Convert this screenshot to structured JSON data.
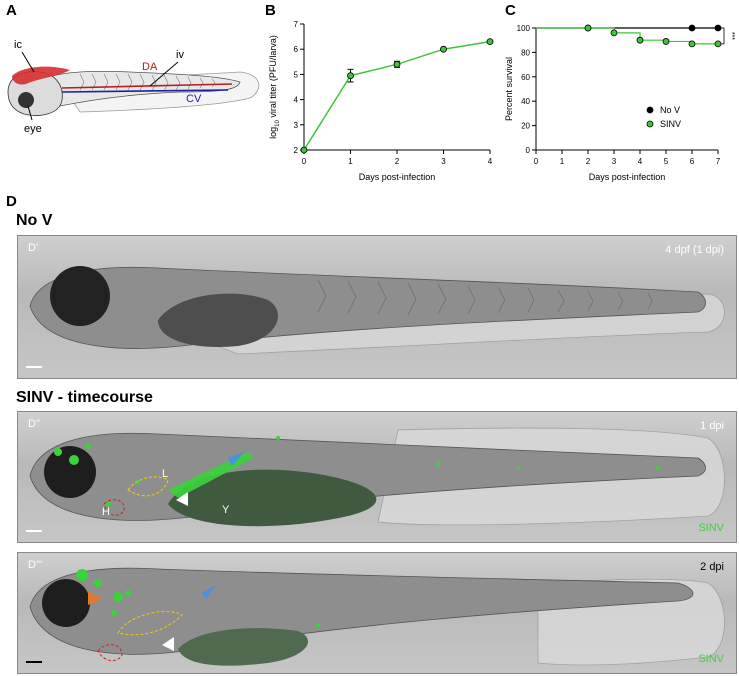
{
  "panels": {
    "A": {
      "letter": "A",
      "labels": {
        "ic": "ic",
        "iv": "iv",
        "da": "DA",
        "cv": "CV",
        "eye": "eye"
      }
    },
    "B": {
      "letter": "B"
    },
    "C": {
      "letter": "C"
    },
    "D": {
      "letter": "D"
    }
  },
  "chart_data": [
    {
      "type": "line",
      "panel": "B",
      "xlabel": "Days post-infection",
      "ylabel_prefix": "log",
      "ylabel_sub": "10",
      "ylabel_suffix": " viral titer (PFU/larva)",
      "xlim": [
        0,
        4
      ],
      "ylim": [
        2,
        7
      ],
      "xticks": [
        0,
        1,
        2,
        3,
        4
      ],
      "yticks": [
        2,
        3,
        4,
        5,
        6,
        7
      ],
      "series": [
        {
          "color": "#3fc43a",
          "x": [
            0,
            1,
            2,
            3,
            4
          ],
          "y": [
            2.0,
            4.95,
            5.4,
            6.0,
            6.3
          ],
          "err": [
            0,
            0.25,
            0.12,
            0.05,
            0.05
          ]
        }
      ]
    },
    {
      "type": "line",
      "panel": "C",
      "xlabel": "Days post-infection",
      "ylabel": "Percent survival",
      "xlim": [
        0,
        7
      ],
      "ylim": [
        0,
        100
      ],
      "xticks": [
        0,
        1,
        2,
        3,
        4,
        5,
        6,
        7
      ],
      "yticks": [
        0,
        20,
        40,
        60,
        80,
        100
      ],
      "significance": "***",
      "legend_position": "middle-right",
      "series": [
        {
          "name": "No V",
          "color": "#000000",
          "x": [
            0,
            2,
            6,
            7
          ],
          "y": [
            100,
            100,
            100,
            100
          ]
        },
        {
          "name": "SINV",
          "color": "#3fc43a",
          "x": [
            0,
            2,
            3,
            4,
            5,
            6,
            7
          ],
          "y": [
            100,
            100,
            96,
            90,
            89,
            87,
            87
          ]
        }
      ]
    }
  ],
  "section_titles": {
    "no_v": "No V",
    "sinv": "SINV - timecourse"
  },
  "micrographs": [
    {
      "tag": "D'",
      "time": "4 dpf (1 dpi)",
      "green_label": ""
    },
    {
      "tag": "D''",
      "time": "1 dpi",
      "green_label": "SINV",
      "labels": {
        "L": "L",
        "H": "H",
        "Y": "Y"
      }
    },
    {
      "tag": "D'''",
      "time": "2 dpi",
      "green_label": "SINV"
    }
  ],
  "colors": {
    "da": "#b42020",
    "cv": "#1e1ea0",
    "sinv_green": "#3fc43a",
    "arrow_blue": "#4a90e2",
    "arrow_orange": "#e8772e",
    "liver_outline": "#f0d000",
    "heart_outline": "#d02020"
  }
}
